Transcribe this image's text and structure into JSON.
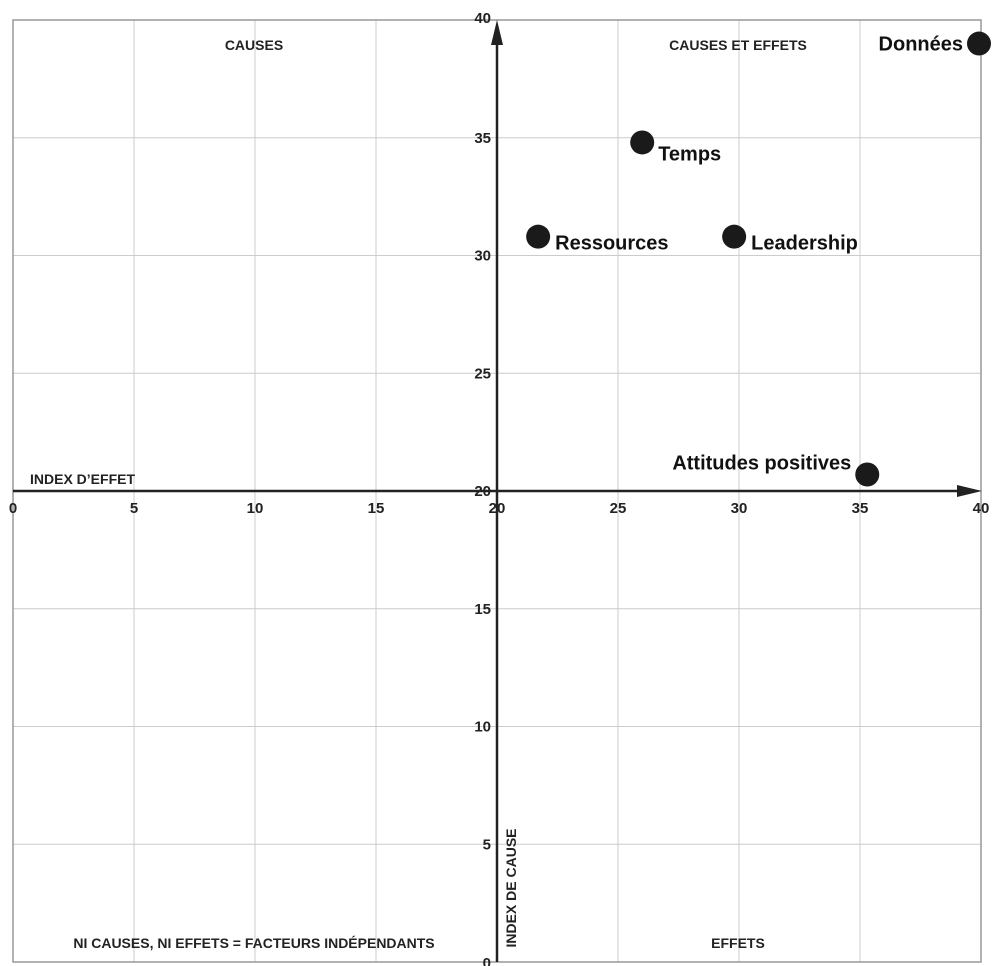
{
  "chart_data": {
    "type": "scatter",
    "x_axis": {
      "label": "INDEX D’EFFET",
      "range": [
        0,
        40
      ],
      "ticks": [
        0,
        5,
        10,
        15,
        20,
        25,
        30,
        35,
        40
      ]
    },
    "y_axis": {
      "label": "INDEX DE CAUSE",
      "range": [
        0,
        40
      ],
      "ticks": [
        0,
        5,
        10,
        15,
        20,
        25,
        30,
        35,
        40
      ]
    },
    "axis_crossing": {
      "x": 20,
      "y": 20
    },
    "grid": true,
    "quadrants": {
      "top_left": "CAUSES",
      "top_right": "CAUSES ET EFFETS",
      "bottom_left": "NI CAUSES, NI EFFETS = FACTEURS INDÉPENDANTS",
      "bottom_right": "EFFETS"
    },
    "points": [
      {
        "label": "Données",
        "x": 40,
        "y": 39,
        "label_side": "left"
      },
      {
        "label": "Temps",
        "x": 26,
        "y": 34.8,
        "label_side": "right-below"
      },
      {
        "label": "Ressources",
        "x": 21.7,
        "y": 30.8,
        "label_side": "right"
      },
      {
        "label": "Leadership",
        "x": 29.8,
        "y": 30.8,
        "label_side": "right"
      },
      {
        "label": "Attitudes positives",
        "x": 35.3,
        "y": 20.7,
        "label_side": "left"
      }
    ]
  },
  "colors": {
    "grid": "#cccccc",
    "axis": "#222222",
    "point": "#1a1a1a",
    "frame": "#999999"
  }
}
